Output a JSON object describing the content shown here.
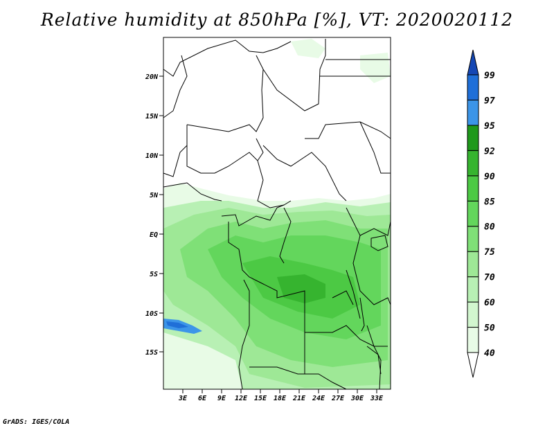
{
  "title": "Relative humidity at 850hPa [%], VT: 2020020112",
  "credit": "GrADS: IGES/COLA",
  "map": {
    "lat_labels": [
      "20N",
      "15N",
      "10N",
      "5N",
      "EQ",
      "5S",
      "10S",
      "15S"
    ],
    "lon_labels": [
      "3E",
      "6E",
      "9E",
      "12E",
      "15E",
      "18E",
      "21E",
      "24E",
      "27E",
      "30E",
      "33E"
    ]
  },
  "colorbar": {
    "levels": [
      "40",
      "50",
      "60",
      "70",
      "75",
      "80",
      "85",
      "90",
      "92",
      "95",
      "97",
      "99"
    ],
    "colors": [
      "#ffffff",
      "#e8fbe6",
      "#d2f6cf",
      "#b8f0b4",
      "#9ee896",
      "#7fe077",
      "#63d65c",
      "#4cc944",
      "#36b42f",
      "#1f991b",
      "#3c95e8",
      "#1f6fd8",
      "#1547b4"
    ]
  }
}
